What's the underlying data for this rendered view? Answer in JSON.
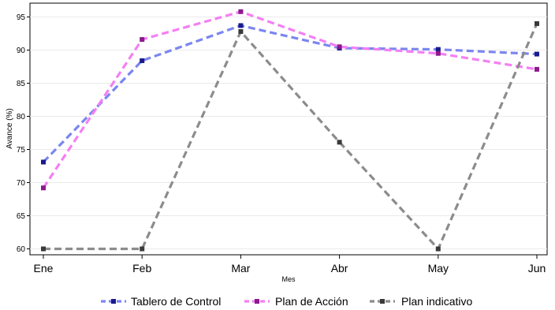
{
  "chart_data": {
    "type": "line",
    "xlabel": "Mes",
    "ylabel": "Avance (%)",
    "categories": [
      "Ene",
      "Feb",
      "Mar",
      "Abr",
      "May",
      "Jun"
    ],
    "ylim": [
      60,
      96
    ],
    "yticks": [
      60,
      65,
      70,
      75,
      80,
      85,
      90,
      95
    ],
    "grid": true,
    "legend": "bottom",
    "series": [
      {
        "name": "Tablero de Control",
        "values": [
          73.1,
          88.4,
          93.7,
          90.3,
          90.1,
          89.4
        ],
        "line_color": "#7b86f0",
        "marker_color": "#1a1a8c"
      },
      {
        "name": "Plan de Acción",
        "values": [
          69.2,
          91.6,
          95.8,
          90.5,
          89.5,
          87.1
        ],
        "line_color": "#f47ff4",
        "marker_color": "#8c1a8c"
      },
      {
        "name": "Plan indicativo",
        "values": [
          60.0,
          60.0,
          92.8,
          76.1,
          60.0,
          94.0
        ],
        "line_color": "#8c8c8c",
        "marker_color": "#3a3a3a"
      }
    ]
  }
}
